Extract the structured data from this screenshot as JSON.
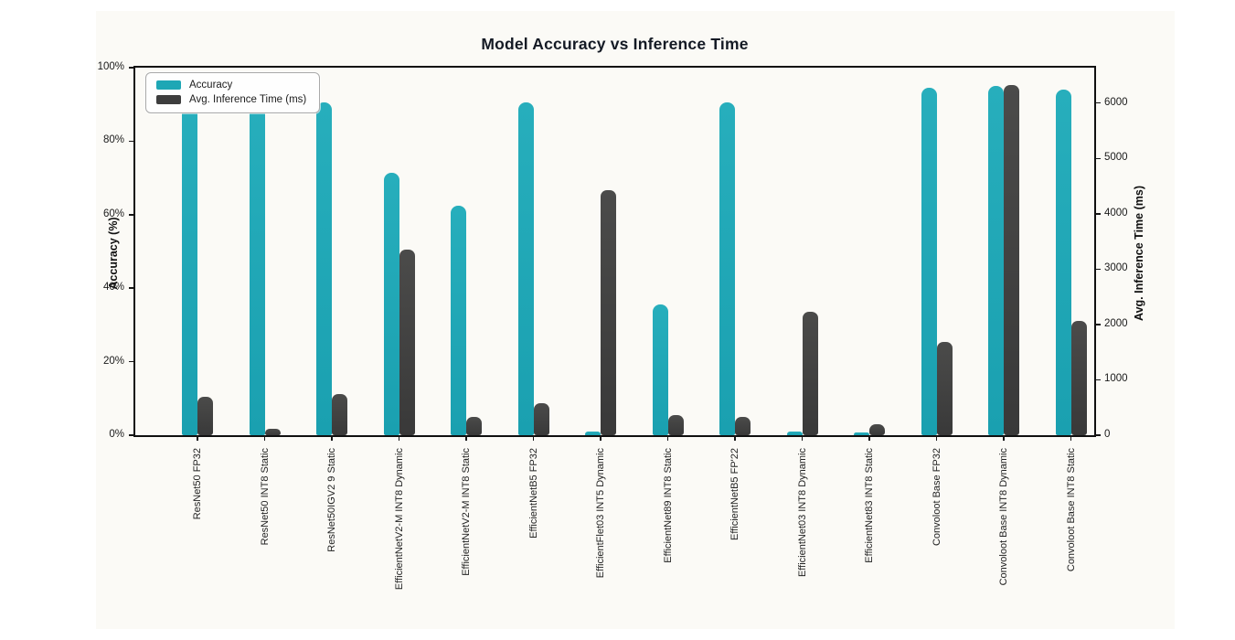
{
  "chart_data": {
    "type": "bar",
    "title": "Model Accuracy vs Inference Time",
    "categories": [
      "ResNet50 FP32",
      "ResNet50 INT8 Static",
      "ResNet50IGV2 9 Static",
      "EfficientNetV2-M INT8 Dynamic",
      "EfficientNetV2-M INT8 Static",
      "EfficientNetB5 FP32",
      "EfficientFlet03 INT5 Dynamic",
      "EfficientNet89 INT8 Static",
      "EfficientNetB5 FP'22",
      "EfficientNet03 INT8 Dynamic",
      "EfficientNet83 INT8 Static",
      "Convoloot Base FP32",
      "Convoloot Base INT8 Dynamic",
      "Convoloot Base INT8 Static"
    ],
    "series": [
      {
        "name": "Accuracy",
        "axis": "left",
        "unit": "%",
        "color": "#1ea7b5",
        "values": [
          89.5,
          89.5,
          90.5,
          71.5,
          62.5,
          90.5,
          1,
          35.5,
          90.5,
          1,
          0.8,
          94.5,
          95,
          94
        ]
      },
      {
        "name": "Avg. Inference Time (ms)",
        "axis": "right",
        "unit": "ms",
        "color": "#3d3d3d",
        "values": [
          690,
          110,
          740,
          3350,
          325,
          585,
          4420,
          365,
          335,
          2230,
          205,
          1690,
          6320,
          2060
        ]
      }
    ],
    "left_axis": {
      "label": "Accuracy (%)",
      "ticks": [
        "0%",
        "20%",
        "40%",
        "60%",
        "80%",
        "100%"
      ],
      "tick_values": [
        0,
        20,
        40,
        60,
        80,
        100
      ],
      "range": [
        0,
        100
      ]
    },
    "right_axis": {
      "label": "Avg. Inference Time (ms)",
      "ticks": [
        "0",
        "1000",
        "2000",
        "3000",
        "4000",
        "5000",
        "6000"
      ],
      "tick_values": [
        0,
        1000,
        2000,
        3000,
        4000,
        5000,
        6000
      ],
      "range": [
        0,
        6640
      ]
    },
    "legend_position": "upper left",
    "grid": false
  }
}
